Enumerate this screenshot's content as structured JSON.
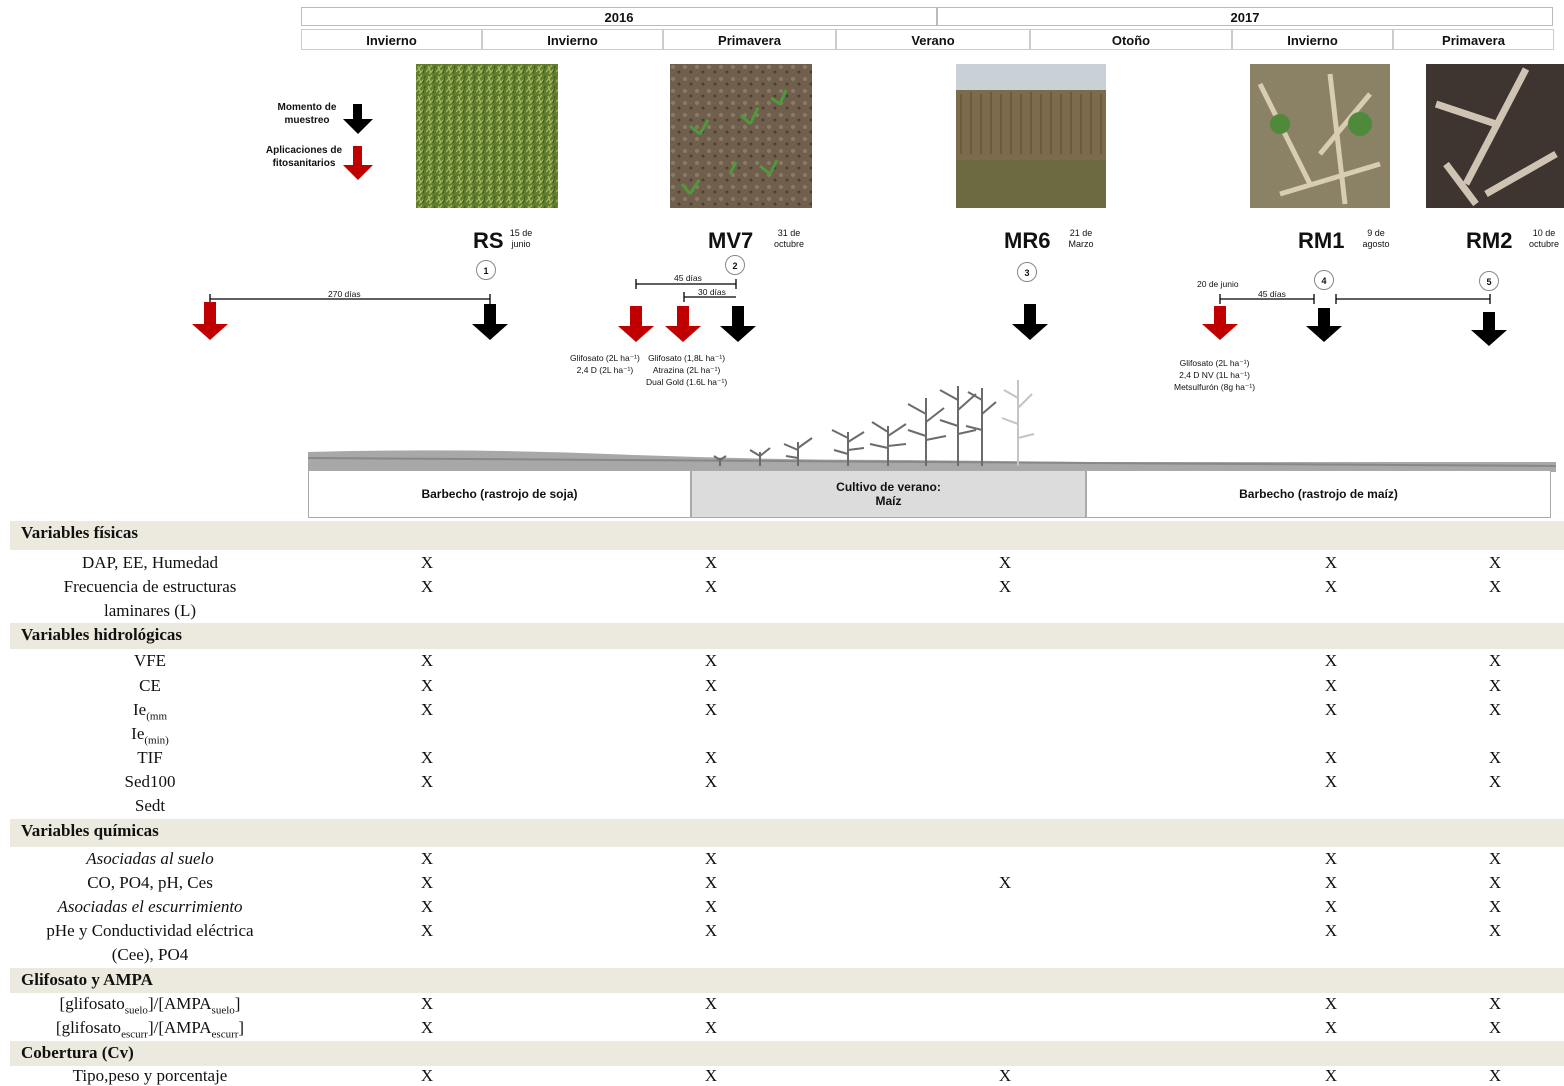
{
  "years": {
    "y2016": "2016",
    "y2017": "2017"
  },
  "seasons": [
    "Invierno",
    "Invierno",
    "Primavera",
    "Verano",
    "Otoño",
    "Invierno",
    "Primavera"
  ],
  "legend": {
    "sampling": "Momento de muestreo",
    "applications": "Aplicaciones de fitosanitarios"
  },
  "samplings": [
    {
      "code": "RS",
      "date": "15 de junio",
      "num": "1"
    },
    {
      "code": "MV7",
      "date": "31 de octubre",
      "num": "2"
    },
    {
      "code": "MR6",
      "date": "21 de Marzo",
      "num": "3"
    },
    {
      "code": "RM1",
      "date": "9 de agosto",
      "num": "4"
    },
    {
      "code": "RM2",
      "date": "10 de octubre",
      "num": "5"
    }
  ],
  "intervals": {
    "d270": "270 días",
    "d45a": "45 días",
    "d30": "30 días",
    "d20jun": "20 de junio",
    "d45b": "45 días"
  },
  "applications": {
    "a1": [
      "Glifosato (2L ha⁻¹)",
      "2,4 D  (2L ha⁻¹)"
    ],
    "a2": [
      "Glifosato (1,8L ha⁻¹)",
      "Atrazina (2L ha⁻¹)",
      "Dual Gold  (1.6L ha⁻¹)"
    ],
    "a3": [
      "Glifosato (2L ha⁻¹)",
      "2,4 D NV (1L ha⁻¹)",
      "Metsulfurón (8g ha⁻¹)"
    ]
  },
  "phases": {
    "p1": "Barbecho (rastrojo de soja)",
    "p2": "Cultivo de verano: Maíz",
    "p3": "Barbecho (rastrojo de maíz)"
  },
  "table": {
    "sections": {
      "s1": "Variables físicas",
      "s2": "Variables hidrológicas",
      "s3": "Variables químicas",
      "s4": "Glifosato y AMPA",
      "s5": "Cobertura (Cv)"
    },
    "rows": {
      "r1": "DAP, EE, Humedad",
      "r2a": "Frecuencia de estructuras",
      "r2b": "laminares  (L)",
      "r3": "VFE",
      "r4": "CE",
      "r5": "Ie(mm",
      "r6": "Ie(min)",
      "r7": "TIF",
      "r8": "Sed100",
      "r9": "Sedt",
      "r10": "Asociadas al suelo",
      "r11": "CO, PO4, pH, Ces",
      "r12": "Asociadas el escurrimiento",
      "r13a": "pHe y Conductividad eléctrica",
      "r13b": "(Cee), PO4",
      "r14": "[glifosato suelo]/[AMPA suelo]",
      "r15": "[glifosato escurr]/[AMPA escurr]",
      "r16": "Tipo,peso y porcentaje"
    },
    "mark": "X"
  },
  "colors": {
    "red_arrow": "#c00000",
    "black_arrow": "#000000",
    "section_bg": "#eceadf"
  }
}
